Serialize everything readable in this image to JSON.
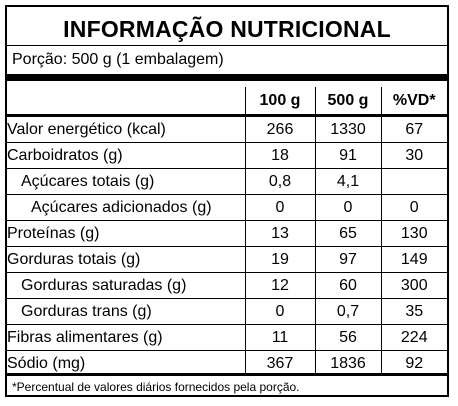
{
  "title": "INFORMAÇÃO NUTRICIONAL",
  "portion": "Porção: 500 g (1 embalagem)",
  "columns": [
    "100 g",
    "500 g",
    "%VD*"
  ],
  "rows": [
    {
      "name": "Valor energético (kcal)",
      "v100": "266",
      "v500": "1330",
      "vd": "67"
    },
    {
      "name": "Carboidratos (g)",
      "v100": "18",
      "v500": "91",
      "vd": "30"
    },
    {
      "name": "Açúcares totais (g)",
      "v100": "0,8",
      "v500": "4,1",
      "vd": ""
    },
    {
      "name": "Açúcares adicionados (g)",
      "v100": "0",
      "v500": "0",
      "vd": "0"
    },
    {
      "name": "Proteínas (g)",
      "v100": "13",
      "v500": "65",
      "vd": "130"
    },
    {
      "name": "Gorduras totais (g)",
      "v100": "19",
      "v500": "97",
      "vd": "149"
    },
    {
      "name": "Gorduras saturadas (g)",
      "v100": "12",
      "v500": "60",
      "vd": "300"
    },
    {
      "name": "Gorduras trans (g)",
      "v100": "0",
      "v500": "0,7",
      "vd": "35"
    },
    {
      "name": "Fibras alimentares (g)",
      "v100": "11",
      "v500": "56",
      "vd": "224"
    },
    {
      "name": "Sódio (mg)",
      "v100": "367",
      "v500": "1836",
      "vd": "92"
    }
  ],
  "footnote": "*Percentual de valores diários fornecidos pela porção."
}
